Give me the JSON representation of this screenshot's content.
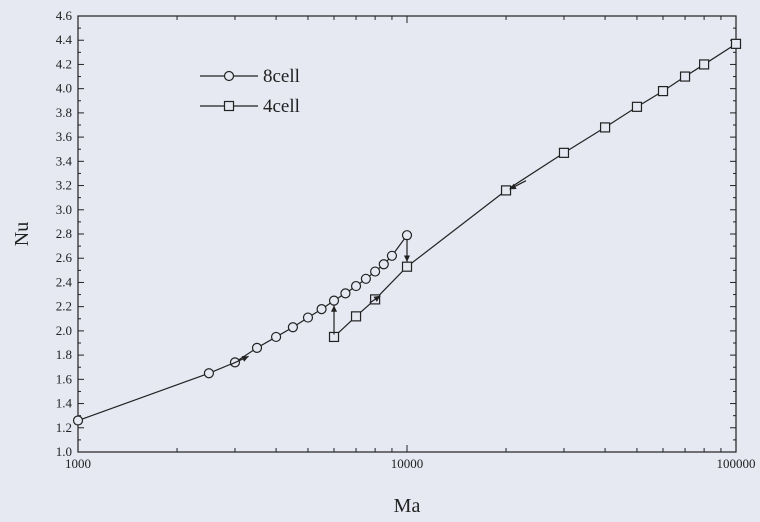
{
  "chart_data": {
    "type": "line",
    "xlabel": "Ma",
    "ylabel": "Nu",
    "xscale": "log",
    "xlim": [
      1000,
      100000
    ],
    "ylim": [
      1.0,
      4.6
    ],
    "x_ticks": [
      1000,
      10000,
      100000
    ],
    "x_tick_labels": [
      "1000",
      "10000",
      "100000"
    ],
    "y_ticks": [
      1.0,
      1.2,
      1.4,
      1.6,
      1.8,
      2.0,
      2.2,
      2.4,
      2.6,
      2.8,
      3.0,
      3.2,
      3.4,
      3.6,
      3.8,
      4.0,
      4.2,
      4.4,
      4.6
    ],
    "y_tick_labels": [
      "1.0",
      "1.2",
      "1.4",
      "1.6",
      "1.8",
      "2.0",
      "2.2",
      "2.4",
      "2.6",
      "2.8",
      "3.0",
      "3.2",
      "3.4",
      "3.6",
      "3.8",
      "4.0",
      "4.2",
      "4.4",
      "4.6"
    ],
    "grid": false,
    "legend": "top-left",
    "series": [
      {
        "name": "8cell",
        "marker": "circle",
        "x": [
          1000,
          2500,
          3000,
          3500,
          4000,
          4500,
          5000,
          5500,
          6000,
          6500,
          7000,
          7500,
          8000,
          8500,
          9000,
          10000
        ],
        "y": [
          1.26,
          1.65,
          1.74,
          1.86,
          1.95,
          2.03,
          2.11,
          2.18,
          2.25,
          2.31,
          2.37,
          2.43,
          2.49,
          2.55,
          2.62,
          2.79
        ]
      },
      {
        "name": "4cell",
        "marker": "square",
        "x": [
          6000,
          7000,
          8000,
          10000,
          20000,
          30000,
          40000,
          50000,
          60000,
          70000,
          80000,
          100000
        ],
        "y": [
          1.95,
          2.12,
          2.26,
          2.53,
          3.16,
          3.47,
          3.68,
          3.85,
          3.98,
          4.1,
          4.2,
          4.37
        ]
      }
    ],
    "annotations": [
      {
        "type": "arrow",
        "x_from": 2900,
        "y_from": 1.72,
        "x_to": 3300,
        "y_to": 1.79
      },
      {
        "type": "arrow",
        "x_from": 6000,
        "y_from": 1.97,
        "x_to": 6000,
        "y_to": 2.21
      },
      {
        "type": "arrow",
        "x_from": 10000,
        "y_from": 2.76,
        "x_to": 10000,
        "y_to": 2.57
      },
      {
        "type": "arrow",
        "x_from": 7700,
        "y_from": 2.23,
        "x_to": 8300,
        "y_to": 2.29
      },
      {
        "type": "arrow",
        "x_from": 23000,
        "y_from": 3.24,
        "x_to": 20500,
        "y_to": 3.17
      }
    ]
  }
}
